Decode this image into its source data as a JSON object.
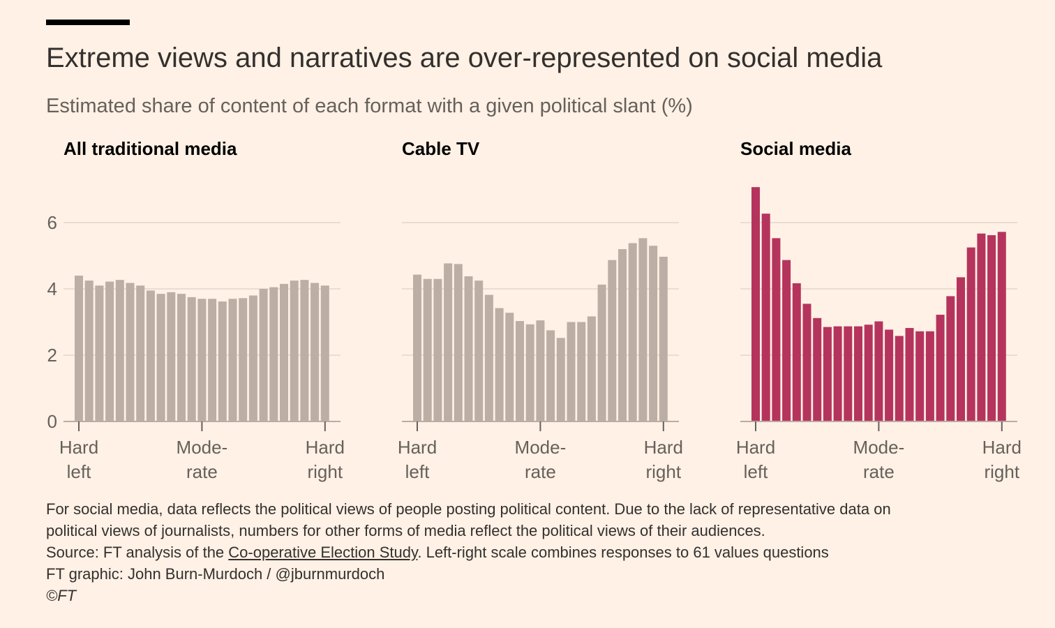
{
  "header": {
    "title": "Extreme views and narratives are over-represented on social media",
    "subtitle": "Estimated share of content of each format with a given political slant (%)"
  },
  "colors": {
    "background": "#fff1e5",
    "traditional_bars": "#bcaea5",
    "social_bars": "#b5345d",
    "gridline": "#e9ddd2",
    "axis": "#b8aca3",
    "text": "#33302e",
    "muted_text": "#66605c"
  },
  "y_axis": {
    "ticks": [
      0,
      2,
      4,
      6
    ],
    "ylim": [
      0,
      7.2
    ]
  },
  "x_axis": {
    "ticks": [
      {
        "line1": "Hard",
        "line2": "left"
      },
      {
        "line1": "Mode-",
        "line2": "rate"
      },
      {
        "line1": "Hard",
        "line2": "right"
      }
    ]
  },
  "chart_data": [
    {
      "type": "bar",
      "title": "All traditional media",
      "values": [
        4.4,
        4.25,
        4.1,
        4.22,
        4.27,
        4.18,
        4.1,
        3.95,
        3.85,
        3.9,
        3.85,
        3.75,
        3.7,
        3.7,
        3.62,
        3.7,
        3.72,
        3.8,
        4.0,
        4.05,
        4.15,
        4.25,
        4.27,
        4.18,
        4.1
      ],
      "ylim": [
        0,
        7.2
      ]
    },
    {
      "type": "bar",
      "title": "Cable TV",
      "values": [
        4.43,
        4.3,
        4.3,
        4.77,
        4.75,
        4.38,
        4.25,
        3.82,
        3.42,
        3.28,
        3.03,
        2.93,
        3.05,
        2.75,
        2.52,
        3.0,
        3.0,
        3.17,
        4.13,
        4.87,
        5.2,
        5.38,
        5.53,
        5.3,
        4.97
      ],
      "ylim": [
        0,
        7.2
      ]
    },
    {
      "type": "bar",
      "title": "Social media",
      "values": [
        7.07,
        6.27,
        5.53,
        4.87,
        4.17,
        3.55,
        3.12,
        2.85,
        2.87,
        2.87,
        2.87,
        2.92,
        3.02,
        2.77,
        2.58,
        2.82,
        2.72,
        2.72,
        3.22,
        3.78,
        4.35,
        5.25,
        5.67,
        5.62,
        5.72
      ],
      "ylim": [
        0,
        7.2
      ]
    }
  ],
  "footer": {
    "note_line1": "For social media, data reflects the political views of people posting political content. Due to the lack of representative data on",
    "note_line2": "political views of journalists, numbers for other forms of media reflect the political views of their audiences.",
    "source_prefix": "Source: FT analysis of the ",
    "source_link": "Co-operative Election Study",
    "source_suffix": ". Left-right scale combines responses to 61 values questions",
    "credit": "FT graphic: John Burn-Murdoch / @jburnmurdoch",
    "copyright": "©FT"
  }
}
